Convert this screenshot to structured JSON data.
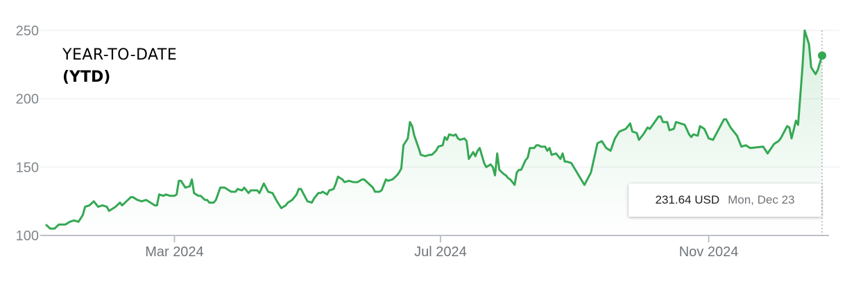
{
  "title": {
    "line1": "YEAR-TO-DATE",
    "line2": "(YTD)"
  },
  "tooltip": {
    "price": "231.64 USD",
    "date": "Mon, Dec 23"
  },
  "colors": {
    "line": "#34a853",
    "axis_text": "#70757a",
    "grid": "#f1f3f4",
    "baseline": "#bdc1c6"
  },
  "chart_data": {
    "type": "line",
    "title": "",
    "xlabel": "",
    "ylabel": "",
    "ylim": [
      100,
      250
    ],
    "yticks": [
      100,
      150,
      200,
      250
    ],
    "ytick_labels": [
      "100",
      "150",
      "200",
      "250"
    ],
    "xticks": [
      {
        "date": "2024-03-01",
        "label": "Mar 2024"
      },
      {
        "date": "2024-07-01",
        "label": "Jul 2024"
      },
      {
        "date": "2024-11-01",
        "label": "Nov 2024"
      }
    ],
    "grid": true,
    "unit": "USD",
    "series": [
      {
        "points": [
          [
            "2024-01-02",
            108
          ],
          [
            "2024-01-04",
            105
          ],
          [
            "2024-01-06",
            105
          ],
          [
            "2024-01-08",
            108
          ],
          [
            "2024-01-11",
            108
          ],
          [
            "2024-01-13",
            110
          ],
          [
            "2024-01-15",
            111
          ],
          [
            "2024-01-17",
            110
          ],
          [
            "2024-01-19",
            115
          ],
          [
            "2024-01-20",
            121
          ],
          [
            "2024-01-22",
            122
          ],
          [
            "2024-01-24",
            125
          ],
          [
            "2024-01-26",
            121
          ],
          [
            "2024-01-28",
            122
          ],
          [
            "2024-01-30",
            121
          ],
          [
            "2024-01-31",
            118
          ],
          [
            "2024-02-03",
            121
          ],
          [
            "2024-02-05",
            124
          ],
          [
            "2024-02-06",
            122
          ],
          [
            "2024-02-08",
            125
          ],
          [
            "2024-02-10",
            128
          ],
          [
            "2024-02-11",
            128
          ],
          [
            "2024-02-13",
            126
          ],
          [
            "2024-02-15",
            125
          ],
          [
            "2024-02-17",
            126
          ],
          [
            "2024-02-19",
            124
          ],
          [
            "2024-02-21",
            122
          ],
          [
            "2024-02-22",
            122
          ],
          [
            "2024-02-23",
            130
          ],
          [
            "2024-02-25",
            129
          ],
          [
            "2024-02-26",
            130
          ],
          [
            "2024-02-28",
            129
          ],
          [
            "2024-03-01",
            129
          ],
          [
            "2024-03-02",
            130
          ],
          [
            "2024-03-03",
            140
          ],
          [
            "2024-03-04",
            140
          ],
          [
            "2024-03-06",
            135
          ],
          [
            "2024-03-08",
            136
          ],
          [
            "2024-03-09",
            141
          ],
          [
            "2024-03-10",
            131
          ],
          [
            "2024-03-12",
            129
          ],
          [
            "2024-03-13",
            129
          ],
          [
            "2024-03-15",
            126
          ],
          [
            "2024-03-16",
            126
          ],
          [
            "2024-03-17",
            124
          ],
          [
            "2024-03-19",
            124
          ],
          [
            "2024-03-20",
            126
          ],
          [
            "2024-03-22",
            135
          ],
          [
            "2024-03-24",
            135
          ],
          [
            "2024-03-25",
            134
          ],
          [
            "2024-03-27",
            132
          ],
          [
            "2024-03-29",
            132
          ],
          [
            "2024-03-30",
            134
          ],
          [
            "2024-04-01",
            133
          ],
          [
            "2024-04-02",
            135
          ],
          [
            "2024-04-04",
            131
          ],
          [
            "2024-04-05",
            133
          ],
          [
            "2024-04-08",
            133
          ],
          [
            "2024-04-09",
            131
          ],
          [
            "2024-04-11",
            138
          ],
          [
            "2024-04-13",
            132
          ],
          [
            "2024-04-15",
            131
          ],
          [
            "2024-04-16",
            128
          ],
          [
            "2024-04-17",
            125
          ],
          [
            "2024-04-19",
            120
          ],
          [
            "2024-04-21",
            122
          ],
          [
            "2024-04-22",
            124
          ],
          [
            "2024-04-24",
            126
          ],
          [
            "2024-04-26",
            130
          ],
          [
            "2024-04-27",
            134
          ],
          [
            "2024-04-28",
            134
          ],
          [
            "2024-04-29",
            131
          ],
          [
            "2024-05-01",
            125
          ],
          [
            "2024-05-03",
            124
          ],
          [
            "2024-05-04",
            127
          ],
          [
            "2024-05-06",
            131
          ],
          [
            "2024-05-07",
            131
          ],
          [
            "2024-05-08",
            132
          ],
          [
            "2024-05-10",
            130
          ],
          [
            "2024-05-11",
            133
          ],
          [
            "2024-05-13",
            134
          ],
          [
            "2024-05-14",
            138
          ],
          [
            "2024-05-15",
            143
          ],
          [
            "2024-05-17",
            141
          ],
          [
            "2024-05-18",
            139
          ],
          [
            "2024-05-20",
            140
          ],
          [
            "2024-05-22",
            139
          ],
          [
            "2024-05-24",
            139
          ],
          [
            "2024-05-26",
            141
          ],
          [
            "2024-05-27",
            141
          ],
          [
            "2024-05-29",
            138
          ],
          [
            "2024-05-31",
            135
          ],
          [
            "2024-06-01",
            132
          ],
          [
            "2024-06-03",
            132
          ],
          [
            "2024-06-04",
            133
          ],
          [
            "2024-06-06",
            141
          ],
          [
            "2024-06-07",
            140
          ],
          [
            "2024-06-09",
            141
          ],
          [
            "2024-06-11",
            144
          ],
          [
            "2024-06-12",
            146
          ],
          [
            "2024-06-13",
            149
          ],
          [
            "2024-06-14",
            166
          ],
          [
            "2024-06-16",
            171
          ],
          [
            "2024-06-17",
            183
          ],
          [
            "2024-06-18",
            180
          ],
          [
            "2024-06-19",
            173
          ],
          [
            "2024-06-21",
            164
          ],
          [
            "2024-06-22",
            159
          ],
          [
            "2024-06-24",
            158
          ],
          [
            "2024-06-26",
            159
          ],
          [
            "2024-06-27",
            159
          ],
          [
            "2024-06-29",
            162
          ],
          [
            "2024-06-30",
            165
          ],
          [
            "2024-07-02",
            166
          ],
          [
            "2024-07-03",
            172
          ],
          [
            "2024-07-04",
            170
          ],
          [
            "2024-07-05",
            174
          ],
          [
            "2024-07-07",
            173
          ],
          [
            "2024-07-08",
            174
          ],
          [
            "2024-07-09",
            171
          ],
          [
            "2024-07-10",
            170
          ],
          [
            "2024-07-12",
            171
          ],
          [
            "2024-07-13",
            169
          ],
          [
            "2024-07-14",
            156
          ],
          [
            "2024-07-16",
            161
          ],
          [
            "2024-07-17",
            158
          ],
          [
            "2024-07-18",
            162
          ],
          [
            "2024-07-19",
            164
          ],
          [
            "2024-07-21",
            153
          ],
          [
            "2024-07-22",
            150
          ],
          [
            "2024-07-24",
            152
          ],
          [
            "2024-07-25",
            150
          ],
          [
            "2024-07-26",
            144
          ],
          [
            "2024-07-27",
            160
          ],
          [
            "2024-07-28",
            148
          ],
          [
            "2024-07-30",
            145
          ],
          [
            "2024-07-31",
            144
          ],
          [
            "2024-08-01",
            142
          ],
          [
            "2024-08-02",
            141
          ],
          [
            "2024-08-04",
            137
          ],
          [
            "2024-08-05",
            146
          ],
          [
            "2024-08-06",
            148
          ],
          [
            "2024-08-07",
            148
          ],
          [
            "2024-08-09",
            155
          ],
          [
            "2024-08-10",
            157
          ],
          [
            "2024-08-11",
            164
          ],
          [
            "2024-08-13",
            164
          ],
          [
            "2024-08-14",
            166
          ],
          [
            "2024-08-15",
            166
          ],
          [
            "2024-08-16",
            165
          ],
          [
            "2024-08-18",
            165
          ],
          [
            "2024-08-19",
            162
          ],
          [
            "2024-08-20",
            164
          ],
          [
            "2024-08-21",
            159
          ],
          [
            "2024-08-23",
            160
          ],
          [
            "2024-08-24",
            158
          ],
          [
            "2024-08-25",
            156
          ],
          [
            "2024-08-26",
            160
          ],
          [
            "2024-08-27",
            154
          ],
          [
            "2024-08-28",
            154
          ],
          [
            "2024-08-30",
            153
          ],
          [
            "2024-09-05",
            137
          ],
          [
            "2024-09-08",
            146
          ],
          [
            "2024-09-11",
            167.5
          ],
          [
            "2024-09-13",
            169
          ],
          [
            "2024-09-15",
            164
          ],
          [
            "2024-09-17",
            162
          ],
          [
            "2024-09-19",
            171
          ],
          [
            "2024-09-21",
            176
          ],
          [
            "2024-09-24",
            178
          ],
          [
            "2024-09-26",
            182
          ],
          [
            "2024-09-27",
            176
          ],
          [
            "2024-09-29",
            175
          ],
          [
            "2024-09-30",
            170
          ],
          [
            "2024-10-02",
            174
          ],
          [
            "2024-10-04",
            179
          ],
          [
            "2024-10-05",
            178
          ],
          [
            "2024-10-09",
            187
          ],
          [
            "2024-10-10",
            187
          ],
          [
            "2024-10-11",
            183
          ],
          [
            "2024-10-13",
            183
          ],
          [
            "2024-10-14",
            177
          ],
          [
            "2024-10-16",
            178
          ],
          [
            "2024-10-17",
            183
          ],
          [
            "2024-10-21",
            181
          ],
          [
            "2024-10-23",
            174
          ],
          [
            "2024-10-24",
            172
          ],
          [
            "2024-10-25",
            174
          ],
          [
            "2024-10-27",
            173
          ],
          [
            "2024-10-28",
            180
          ],
          [
            "2024-10-30",
            178
          ],
          [
            "2024-11-01",
            171
          ],
          [
            "2024-11-03",
            170
          ],
          [
            "2024-11-08",
            185
          ],
          [
            "2024-11-09",
            185
          ],
          [
            "2024-11-11",
            179
          ],
          [
            "2024-11-14",
            173
          ],
          [
            "2024-11-16",
            165
          ],
          [
            "2024-11-18",
            166
          ],
          [
            "2024-11-20",
            164
          ],
          [
            "2024-11-26",
            165
          ],
          [
            "2024-11-28",
            160
          ],
          [
            "2024-12-01",
            167
          ],
          [
            "2024-12-03",
            169
          ],
          [
            "2024-12-04",
            171
          ],
          [
            "2024-12-07",
            180
          ],
          [
            "2024-12-08",
            179
          ],
          [
            "2024-12-09",
            171
          ],
          [
            "2024-12-11",
            184
          ],
          [
            "2024-12-12",
            181
          ],
          [
            "2024-12-14",
            223
          ],
          [
            "2024-12-15",
            250
          ],
          [
            "2024-12-17",
            240
          ],
          [
            "2024-12-18",
            223
          ],
          [
            "2024-12-20",
            218
          ],
          [
            "2024-12-21",
            221
          ],
          [
            "2024-12-23",
            231.64
          ]
        ]
      }
    ]
  }
}
